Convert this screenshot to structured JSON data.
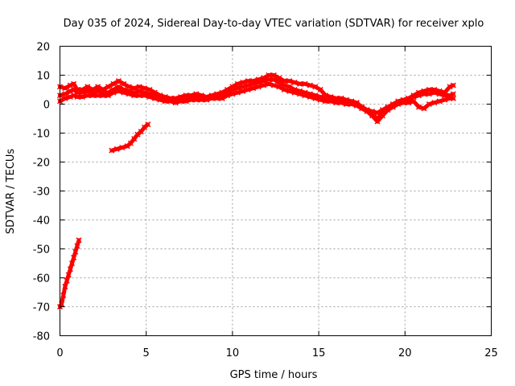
{
  "chart_data": {
    "type": "scatter",
    "title": "Day 035 of 2024, Sidereal Day-to-day VTEC variation (SDTVAR) for receiver xplo",
    "xlabel": "GPS time / hours",
    "ylabel": "SDTVAR / TECUs",
    "xlim": [
      0,
      25
    ],
    "ylim": [
      -80,
      20
    ],
    "xticks": [
      0,
      5,
      10,
      15,
      20,
      25
    ],
    "yticks": [
      20,
      10,
      0,
      -10,
      -20,
      -30,
      -40,
      -50,
      -60,
      -70,
      -80
    ],
    "grid": true,
    "legend": "none",
    "series": [
      {
        "name": "steep-descending-arc",
        "color": "#ff0000",
        "points": [
          [
            0.0,
            -70
          ],
          [
            0.1,
            -69
          ],
          [
            0.2,
            -66
          ],
          [
            0.3,
            -63
          ],
          [
            0.4,
            -61
          ],
          [
            0.5,
            -59
          ],
          [
            0.6,
            -57
          ],
          [
            0.7,
            -55
          ],
          [
            0.8,
            -53
          ],
          [
            0.9,
            -51
          ],
          [
            1.0,
            -49
          ],
          [
            1.1,
            -47
          ]
        ]
      },
      {
        "name": "rising-arc",
        "color": "#ff0000",
        "points": [
          [
            3.0,
            -16
          ],
          [
            3.3,
            -15.5
          ],
          [
            3.6,
            -15
          ],
          [
            3.9,
            -14.5
          ],
          [
            4.1,
            -13.5
          ],
          [
            4.3,
            -12
          ],
          [
            4.5,
            -10.5
          ],
          [
            4.7,
            -9.5
          ],
          [
            4.9,
            -8
          ],
          [
            5.1,
            -7
          ]
        ]
      },
      {
        "name": "trace-upper",
        "color": "#ff0000",
        "points": [
          [
            0.0,
            6
          ],
          [
            0.3,
            5.5
          ],
          [
            0.6,
            6.5
          ],
          [
            0.8,
            7
          ],
          [
            1.0,
            5
          ],
          [
            1.3,
            5
          ],
          [
            1.6,
            6
          ],
          [
            1.9,
            5
          ],
          [
            2.2,
            6
          ],
          [
            2.5,
            5
          ],
          [
            2.8,
            6
          ],
          [
            3.1,
            7
          ],
          [
            3.4,
            8
          ],
          [
            3.7,
            7
          ],
          [
            4.0,
            6
          ],
          [
            4.3,
            5.5
          ],
          [
            4.6,
            6
          ],
          [
            4.9,
            5.5
          ],
          [
            5.2,
            5
          ],
          [
            5.5,
            4
          ],
          [
            5.8,
            3
          ],
          [
            6.1,
            2.5
          ],
          [
            6.4,
            2
          ],
          [
            6.7,
            2
          ],
          [
            7.0,
            2.5
          ],
          [
            7.3,
            3
          ],
          [
            7.6,
            3
          ],
          [
            7.9,
            3.5
          ],
          [
            8.2,
            3
          ],
          [
            8.5,
            2.5
          ],
          [
            8.8,
            3
          ],
          [
            9.1,
            3.5
          ],
          [
            9.4,
            4
          ],
          [
            9.7,
            5
          ],
          [
            10.0,
            6
          ],
          [
            10.3,
            7
          ],
          [
            10.6,
            7.5
          ],
          [
            10.9,
            8
          ],
          [
            11.2,
            8
          ],
          [
            11.5,
            8.5
          ],
          [
            11.8,
            9
          ],
          [
            12.1,
            10
          ],
          [
            12.4,
            10
          ],
          [
            12.7,
            9
          ],
          [
            13.0,
            8
          ],
          [
            13.3,
            8
          ],
          [
            13.6,
            7.5
          ],
          [
            13.9,
            7
          ],
          [
            14.2,
            7
          ],
          [
            14.5,
            6.5
          ],
          [
            14.8,
            6
          ],
          [
            15.1,
            5
          ],
          [
            15.4,
            3
          ],
          [
            15.7,
            2.5
          ],
          [
            16.0,
            2
          ],
          [
            16.3,
            2
          ],
          [
            16.6,
            1.5
          ],
          [
            16.9,
            1
          ],
          [
            17.2,
            0.5
          ],
          [
            17.5,
            -1
          ],
          [
            17.8,
            -2
          ],
          [
            18.1,
            -2.5
          ],
          [
            18.4,
            -3
          ],
          [
            18.7,
            -2
          ],
          [
            19.0,
            -1
          ],
          [
            19.3,
            0
          ],
          [
            19.6,
            1
          ],
          [
            19.9,
            1.5
          ],
          [
            20.2,
            2
          ],
          [
            20.5,
            3
          ],
          [
            20.8,
            4
          ],
          [
            21.1,
            4.5
          ],
          [
            21.4,
            5
          ],
          [
            21.7,
            5
          ],
          [
            22.0,
            4.5
          ],
          [
            22.3,
            4
          ],
          [
            22.6,
            6
          ],
          [
            22.8,
            6.5
          ]
        ]
      },
      {
        "name": "trace-middle",
        "color": "#ff0000",
        "points": [
          [
            0.0,
            3
          ],
          [
            0.3,
            3.5
          ],
          [
            0.6,
            4.5
          ],
          [
            0.8,
            5
          ],
          [
            1.0,
            4
          ],
          [
            1.3,
            4
          ],
          [
            1.6,
            4.5
          ],
          [
            1.9,
            4
          ],
          [
            2.2,
            4.5
          ],
          [
            2.5,
            4
          ],
          [
            2.8,
            4
          ],
          [
            3.1,
            5
          ],
          [
            3.4,
            6
          ],
          [
            3.7,
            5
          ],
          [
            4.0,
            4.5
          ],
          [
            4.3,
            4
          ],
          [
            4.6,
            4.5
          ],
          [
            4.9,
            4
          ],
          [
            5.2,
            3.5
          ],
          [
            5.5,
            3
          ],
          [
            5.8,
            2
          ],
          [
            6.1,
            1.5
          ],
          [
            6.4,
            1.5
          ],
          [
            6.7,
            1.5
          ],
          [
            7.0,
            2
          ],
          [
            7.3,
            2
          ],
          [
            7.6,
            2.5
          ],
          [
            7.9,
            2.5
          ],
          [
            8.2,
            2
          ],
          [
            8.5,
            2
          ],
          [
            8.8,
            2.5
          ],
          [
            9.1,
            3
          ],
          [
            9.4,
            3
          ],
          [
            9.7,
            4
          ],
          [
            10.0,
            5
          ],
          [
            10.3,
            5.5
          ],
          [
            10.6,
            6
          ],
          [
            10.9,
            6.5
          ],
          [
            11.2,
            7
          ],
          [
            11.5,
            7.5
          ],
          [
            11.8,
            8
          ],
          [
            12.1,
            8.5
          ],
          [
            12.4,
            8.5
          ],
          [
            12.7,
            7.5
          ],
          [
            13.0,
            6.5
          ],
          [
            13.3,
            6
          ],
          [
            13.6,
            5
          ],
          [
            13.9,
            4.5
          ],
          [
            14.2,
            4
          ],
          [
            14.5,
            3.5
          ],
          [
            14.8,
            3
          ],
          [
            15.1,
            2.5
          ],
          [
            15.4,
            2
          ],
          [
            15.7,
            1.5
          ],
          [
            16.0,
            1.5
          ],
          [
            16.3,
            1
          ],
          [
            16.6,
            1
          ],
          [
            16.9,
            0.5
          ],
          [
            17.2,
            0
          ],
          [
            17.5,
            -1
          ],
          [
            17.8,
            -2
          ],
          [
            18.1,
            -3.5
          ],
          [
            18.4,
            -5
          ],
          [
            18.7,
            -3
          ],
          [
            19.0,
            -1.5
          ],
          [
            19.3,
            -0.5
          ],
          [
            19.6,
            0.5
          ],
          [
            19.9,
            1
          ],
          [
            20.2,
            1.5
          ],
          [
            20.5,
            2.5
          ],
          [
            20.8,
            3
          ],
          [
            21.1,
            3.5
          ],
          [
            21.4,
            3.5
          ],
          [
            21.7,
            4
          ],
          [
            22.0,
            3.5
          ],
          [
            22.3,
            3
          ],
          [
            22.6,
            3
          ],
          [
            22.8,
            3.5
          ]
        ]
      },
      {
        "name": "trace-lower",
        "color": "#ff0000",
        "points": [
          [
            0.0,
            1
          ],
          [
            0.3,
            2
          ],
          [
            0.6,
            2.5
          ],
          [
            0.8,
            3
          ],
          [
            1.0,
            2.5
          ],
          [
            1.3,
            2.5
          ],
          [
            1.6,
            3
          ],
          [
            1.9,
            3
          ],
          [
            2.2,
            3
          ],
          [
            2.5,
            3
          ],
          [
            2.8,
            3
          ],
          [
            3.1,
            4
          ],
          [
            3.4,
            4.5
          ],
          [
            3.7,
            4
          ],
          [
            4.0,
            3.5
          ],
          [
            4.3,
            3
          ],
          [
            4.6,
            3
          ],
          [
            4.9,
            3
          ],
          [
            5.2,
            2.5
          ],
          [
            5.5,
            2
          ],
          [
            5.8,
            1.5
          ],
          [
            6.1,
            1
          ],
          [
            6.4,
            1
          ],
          [
            6.7,
            0.5
          ],
          [
            7.0,
            1
          ],
          [
            7.3,
            1
          ],
          [
            7.6,
            1.5
          ],
          [
            7.9,
            1.5
          ],
          [
            8.2,
            1.5
          ],
          [
            8.5,
            1.5
          ],
          [
            8.8,
            2
          ],
          [
            9.1,
            2
          ],
          [
            9.4,
            2
          ],
          [
            9.7,
            3
          ],
          [
            10.0,
            3.5
          ],
          [
            10.3,
            4
          ],
          [
            10.6,
            4.5
          ],
          [
            10.9,
            5
          ],
          [
            11.2,
            5.5
          ],
          [
            11.5,
            6
          ],
          [
            11.8,
            6.5
          ],
          [
            12.1,
            7
          ],
          [
            12.4,
            6.5
          ],
          [
            12.7,
            6
          ],
          [
            13.0,
            5
          ],
          [
            13.3,
            4.5
          ],
          [
            13.6,
            4
          ],
          [
            13.9,
            3.5
          ],
          [
            14.2,
            3
          ],
          [
            14.5,
            2.5
          ],
          [
            14.8,
            2
          ],
          [
            15.1,
            1.5
          ],
          [
            15.4,
            1
          ],
          [
            15.7,
            1
          ],
          [
            16.0,
            0.5
          ],
          [
            16.3,
            0.5
          ],
          [
            16.6,
            0
          ],
          [
            16.9,
            0
          ],
          [
            17.2,
            -0.5
          ],
          [
            17.5,
            -1.5
          ],
          [
            17.8,
            -2.5
          ],
          [
            18.1,
            -4
          ],
          [
            18.4,
            -6
          ],
          [
            18.7,
            -4
          ],
          [
            19.0,
            -2
          ],
          [
            19.3,
            -1
          ],
          [
            19.6,
            0
          ],
          [
            19.9,
            0.5
          ],
          [
            20.2,
            0.5
          ],
          [
            20.5,
            1
          ],
          [
            20.8,
            -1
          ],
          [
            21.1,
            -1.5
          ],
          [
            21.4,
            0
          ],
          [
            21.7,
            0.5
          ],
          [
            22.0,
            1
          ],
          [
            22.3,
            1.5
          ],
          [
            22.6,
            2
          ],
          [
            22.8,
            2
          ]
        ]
      }
    ]
  }
}
